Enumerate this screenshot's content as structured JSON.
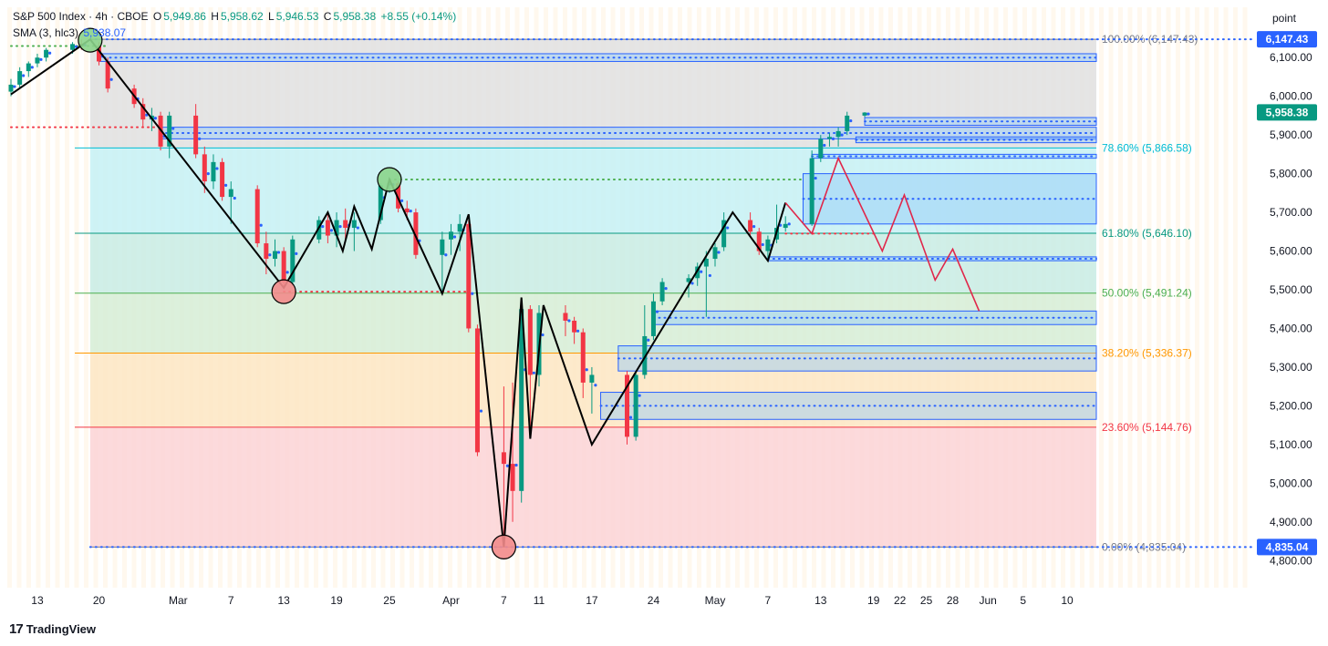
{
  "header": {
    "symbol": "S&P 500 Index · 4h · CBOE",
    "open_label": "O",
    "open": "5,949.86",
    "high_label": "H",
    "high": "5,958.62",
    "low_label": "L",
    "low": "5,946.53",
    "close_label": "C",
    "close": "5,958.38",
    "change": "+8.55 (+0.14%)",
    "sma_label": "SMA (3, hlc3)",
    "sma_value": "5,938.07"
  },
  "unit_button": "point",
  "brand": {
    "logo": "17",
    "name": "TradingView"
  },
  "colors": {
    "up": "#089981",
    "down": "#f23645",
    "accent": "#2962ff",
    "projection": "#e0274a",
    "zigzag": "#000000"
  },
  "chart_data": {
    "type": "candlestick",
    "timeframe": "4h",
    "ylim": [
      4730,
      6230
    ],
    "y_ticks": [
      4800,
      4900,
      5000,
      5100,
      5200,
      5300,
      5400,
      5500,
      5600,
      5700,
      5800,
      5900,
      6000,
      6100
    ],
    "y_tick_labels": [
      "4,800.00",
      "4,900.00",
      "5,000.00",
      "5,100.00",
      "5,200.00",
      "5,300.00",
      "5,400.00",
      "5,500.00",
      "5,600.00",
      "5,700.00",
      "5,800.00",
      "5,900.00",
      "6,000.00",
      "6,100.00"
    ],
    "x_tick_labels": [
      "13",
      "20",
      "Mar",
      "7",
      "13",
      "19",
      "25",
      "Apr",
      "7",
      "11",
      "17",
      "24",
      "May",
      "7",
      "13",
      "19",
      "22",
      "25",
      "28",
      "Jun",
      "5",
      "10"
    ],
    "x_tick_dates": [
      "2025-02-13",
      "2025-02-20",
      "2025-03-01",
      "2025-03-07",
      "2025-03-13",
      "2025-03-19",
      "2025-03-25",
      "2025-04-01",
      "2025-04-07",
      "2025-04-11",
      "2025-04-17",
      "2025-04-24",
      "2025-05-01",
      "2025-05-07",
      "2025-05-13",
      "2025-05-19",
      "2025-05-22",
      "2025-05-25",
      "2025-05-28",
      "2025-06-01",
      "2025-06-05",
      "2025-06-10"
    ],
    "fib_levels": [
      {
        "label": "100.00% (6,147.43)",
        "value": 6147.43,
        "color": "#787b86"
      },
      {
        "label": "78.60% (5,866.58)",
        "value": 5866.58,
        "color": "#00bcd4"
      },
      {
        "label": "61.80% (5,646.10)",
        "value": 5646.1,
        "color": "#089981"
      },
      {
        "label": "50.00% (5,491.24)",
        "value": 5491.24,
        "color": "#4caf50"
      },
      {
        "label": "38.20% (5,336.37)",
        "value": 5336.37,
        "color": "#ff9800"
      },
      {
        "label": "23.60% (5,144.76)",
        "value": 5144.76,
        "color": "#f23645"
      },
      {
        "label": "0.00% (4,835.04)",
        "value": 4835.04,
        "color": "#787b86"
      }
    ],
    "price_badges": [
      {
        "label": "6,147.43",
        "value": 6147.43,
        "color": "#2962ff"
      },
      {
        "label": "5,958.38",
        "value": 5958.38,
        "color": "#089981"
      },
      {
        "label": "4,835.04",
        "value": 4835.04,
        "color": "#2962ff"
      }
    ],
    "zigzag": [
      {
        "date": "2025-02-10",
        "price": 6005
      },
      {
        "date": "2025-02-19",
        "price": 6147
      },
      {
        "date": "2025-03-13",
        "price": 5505
      },
      {
        "date": "2025-03-18",
        "price": 5700
      },
      {
        "date": "2025-03-19.7",
        "price": 5600
      },
      {
        "date": "2025-03-21",
        "price": 5715
      },
      {
        "date": "2025-03-23",
        "price": 5605
      },
      {
        "date": "2025-03-25",
        "price": 5785
      },
      {
        "date": "2025-03-31",
        "price": 5490
      },
      {
        "date": "2025-04-03",
        "price": 5695
      },
      {
        "date": "2025-04-07",
        "price": 4835
      },
      {
        "date": "2025-04-09",
        "price": 5480
      },
      {
        "date": "2025-04-10",
        "price": 5115
      },
      {
        "date": "2025-04-11.5",
        "price": 5460
      },
      {
        "date": "2025-04-17",
        "price": 5100
      },
      {
        "date": "2025-05-03",
        "price": 5700
      },
      {
        "date": "2025-05-07",
        "price": 5575
      },
      {
        "date": "2025-05-09",
        "price": 5725
      }
    ],
    "projection": [
      {
        "date": "2025-05-09",
        "price": 5725
      },
      {
        "date": "2025-05-12",
        "price": 5645
      },
      {
        "date": "2025-05-15",
        "price": 5840
      },
      {
        "date": "2025-05-20",
        "price": 5600
      },
      {
        "date": "2025-05-22.5",
        "price": 5745
      },
      {
        "date": "2025-05-26",
        "price": 5525
      },
      {
        "date": "2025-05-28",
        "price": 5605
      },
      {
        "date": "2025-05-31",
        "price": 5445
      }
    ],
    "pivot_markers": [
      {
        "date": "2025-02-19",
        "price": 6145,
        "type": "high"
      },
      {
        "date": "2025-03-25",
        "price": 5785,
        "type": "high"
      },
      {
        "date": "2025-03-13",
        "price": 5495,
        "type": "low"
      },
      {
        "date": "2025-04-07",
        "price": 4835,
        "type": "low"
      }
    ],
    "blue_zones": [
      {
        "from": "2025-02-20",
        "top": 6110,
        "bottom": 6090
      },
      {
        "from": "2025-02-27",
        "top": 5920,
        "bottom": 5890
      },
      {
        "from": "2025-05-18",
        "top": 5945,
        "bottom": 5925
      },
      {
        "from": "2025-05-17",
        "top": 5895,
        "bottom": 5880
      },
      {
        "from": "2025-05-12",
        "top": 5850,
        "bottom": 5840
      },
      {
        "from": "2025-05-11",
        "top": 5800,
        "bottom": 5670
      },
      {
        "from": "2025-05-07",
        "top": 5585,
        "bottom": 5575
      },
      {
        "from": "2025-04-24",
        "top": 5445,
        "bottom": 5410
      },
      {
        "from": "2025-04-20",
        "top": 5355,
        "bottom": 5290
      },
      {
        "from": "2025-04-18",
        "top": 5235,
        "bottom": 5165
      }
    ],
    "dotted_lines": [
      {
        "from": "2025-02-10",
        "to": "2025-02-21",
        "price": 6130,
        "color": "#4caf50"
      },
      {
        "from": "2025-02-10",
        "to": "2025-02-27",
        "price": 5920,
        "color": "#f23645"
      },
      {
        "from": "2025-03-25",
        "to": "2025-05-11",
        "price": 5785,
        "color": "#4caf50"
      },
      {
        "from": "2025-03-13",
        "to": "2025-04-03",
        "price": 5495,
        "color": "#f23645"
      },
      {
        "from": "2025-05-09",
        "to": "2025-05-19",
        "price": 5645,
        "color": "#f23645"
      }
    ],
    "candles_ohlc_sampled": [
      [
        "2025-02-10",
        6012,
        6045,
        6000,
        6030
      ],
      [
        "2025-02-11",
        6030,
        6075,
        6020,
        6065
      ],
      [
        "2025-02-12",
        6065,
        6090,
        6050,
        6085
      ],
      [
        "2025-02-13",
        6085,
        6110,
        6075,
        6100
      ],
      [
        "2025-02-14",
        6100,
        6125,
        6090,
        6120
      ],
      [
        "2025-02-17",
        6120,
        6140,
        6110,
        6135
      ],
      [
        "2025-02-18",
        6135,
        6147,
        6120,
        6130
      ],
      [
        "2025-02-20",
        6130,
        6140,
        6080,
        6090
      ],
      [
        "2025-02-21",
        6090,
        6100,
        6010,
        6020
      ],
      [
        "2025-02-24",
        6020,
        6030,
        5970,
        5980
      ],
      [
        "2025-02-25",
        5980,
        5995,
        5920,
        5940
      ],
      [
        "2025-02-26",
        5940,
        5970,
        5910,
        5950
      ],
      [
        "2025-02-27",
        5950,
        5960,
        5860,
        5870
      ],
      [
        "2025-02-28",
        5870,
        5960,
        5840,
        5950
      ],
      [
        "2025-03-03",
        5950,
        5980,
        5840,
        5850
      ],
      [
        "2025-03-04",
        5850,
        5870,
        5750,
        5780
      ],
      [
        "2025-03-05",
        5780,
        5850,
        5760,
        5830
      ],
      [
        "2025-03-06",
        5830,
        5840,
        5730,
        5740
      ],
      [
        "2025-03-07",
        5740,
        5780,
        5670,
        5760
      ],
      [
        "2025-03-10",
        5760,
        5770,
        5610,
        5620
      ],
      [
        "2025-03-11",
        5620,
        5650,
        5540,
        5580
      ],
      [
        "2025-03-12",
        5580,
        5630,
        5560,
        5600
      ],
      [
        "2025-03-13",
        5600,
        5610,
        5505,
        5520
      ],
      [
        "2025-03-14",
        5520,
        5640,
        5510,
        5630
      ],
      [
        "2025-03-17",
        5630,
        5690,
        5620,
        5680
      ],
      [
        "2025-03-18",
        5680,
        5700,
        5620,
        5640
      ],
      [
        "2025-03-19",
        5640,
        5700,
        5610,
        5680
      ],
      [
        "2025-03-20",
        5680,
        5710,
        5630,
        5660
      ],
      [
        "2025-03-21",
        5660,
        5700,
        5600,
        5680
      ],
      [
        "2025-03-24",
        5680,
        5775,
        5670,
        5770
      ],
      [
        "2025-03-25",
        5770,
        5790,
        5750,
        5775
      ],
      [
        "2025-03-26",
        5775,
        5780,
        5700,
        5710
      ],
      [
        "2025-03-27",
        5710,
        5730,
        5680,
        5700
      ],
      [
        "2025-03-28",
        5700,
        5710,
        5580,
        5590
      ],
      [
        "2025-03-31",
        5590,
        5650,
        5490,
        5630
      ],
      [
        "2025-04-01",
        5630,
        5670,
        5590,
        5650
      ],
      [
        "2025-04-02",
        5650,
        5695,
        5600,
        5670
      ],
      [
        "2025-04-03",
        5670,
        5680,
        5390,
        5400
      ],
      [
        "2025-04-04",
        5400,
        5410,
        5070,
        5080
      ],
      [
        "2025-04-07",
        5080,
        5250,
        4835,
        5050
      ],
      [
        "2025-04-08",
        5050,
        5260,
        4900,
        4980
      ],
      [
        "2025-04-09",
        4980,
        5480,
        4950,
        5450
      ],
      [
        "2025-04-10",
        5450,
        5460,
        5115,
        5280
      ],
      [
        "2025-04-11",
        5280,
        5460,
        5250,
        5440
      ],
      [
        "2025-04-14",
        5440,
        5460,
        5380,
        5420
      ],
      [
        "2025-04-15",
        5420,
        5430,
        5360,
        5390
      ],
      [
        "2025-04-16",
        5390,
        5400,
        5220,
        5260
      ],
      [
        "2025-04-17",
        5260,
        5300,
        5180,
        5280
      ],
      [
        "2025-04-21",
        5280,
        5290,
        5100,
        5120
      ],
      [
        "2025-04-22",
        5120,
        5290,
        5110,
        5280
      ],
      [
        "2025-04-23",
        5280,
        5460,
        5270,
        5380
      ],
      [
        "2025-04-24",
        5380,
        5490,
        5370,
        5470
      ],
      [
        "2025-04-25",
        5470,
        5530,
        5460,
        5520
      ],
      [
        "2025-04-28",
        5520,
        5540,
        5480,
        5530
      ],
      [
        "2025-04-29",
        5530,
        5570,
        5510,
        5560
      ],
      [
        "2025-04-30",
        5560,
        5600,
        5430,
        5580
      ],
      [
        "2025-05-01",
        5580,
        5620,
        5560,
        5610
      ],
      [
        "2025-05-02",
        5610,
        5700,
        5600,
        5680
      ],
      [
        "2025-05-05",
        5680,
        5700,
        5640,
        5650
      ],
      [
        "2025-05-06",
        5650,
        5660,
        5590,
        5600
      ],
      [
        "2025-05-07",
        5600,
        5640,
        5575,
        5630
      ],
      [
        "2025-05-08",
        5630,
        5720,
        5620,
        5660
      ],
      [
        "2025-05-09",
        5660,
        5690,
        5650,
        5670
      ],
      [
        "2025-05-12",
        5670,
        5860,
        5665,
        5840
      ],
      [
        "2025-05-13",
        5840,
        5900,
        5830,
        5890
      ],
      [
        "2025-05-14",
        5890,
        5905,
        5870,
        5895
      ],
      [
        "2025-05-15",
        5895,
        5920,
        5870,
        5910
      ],
      [
        "2025-05-16",
        5910,
        5960,
        5900,
        5950
      ],
      [
        "2025-05-18",
        5950,
        5959,
        5946,
        5958
      ]
    ]
  }
}
